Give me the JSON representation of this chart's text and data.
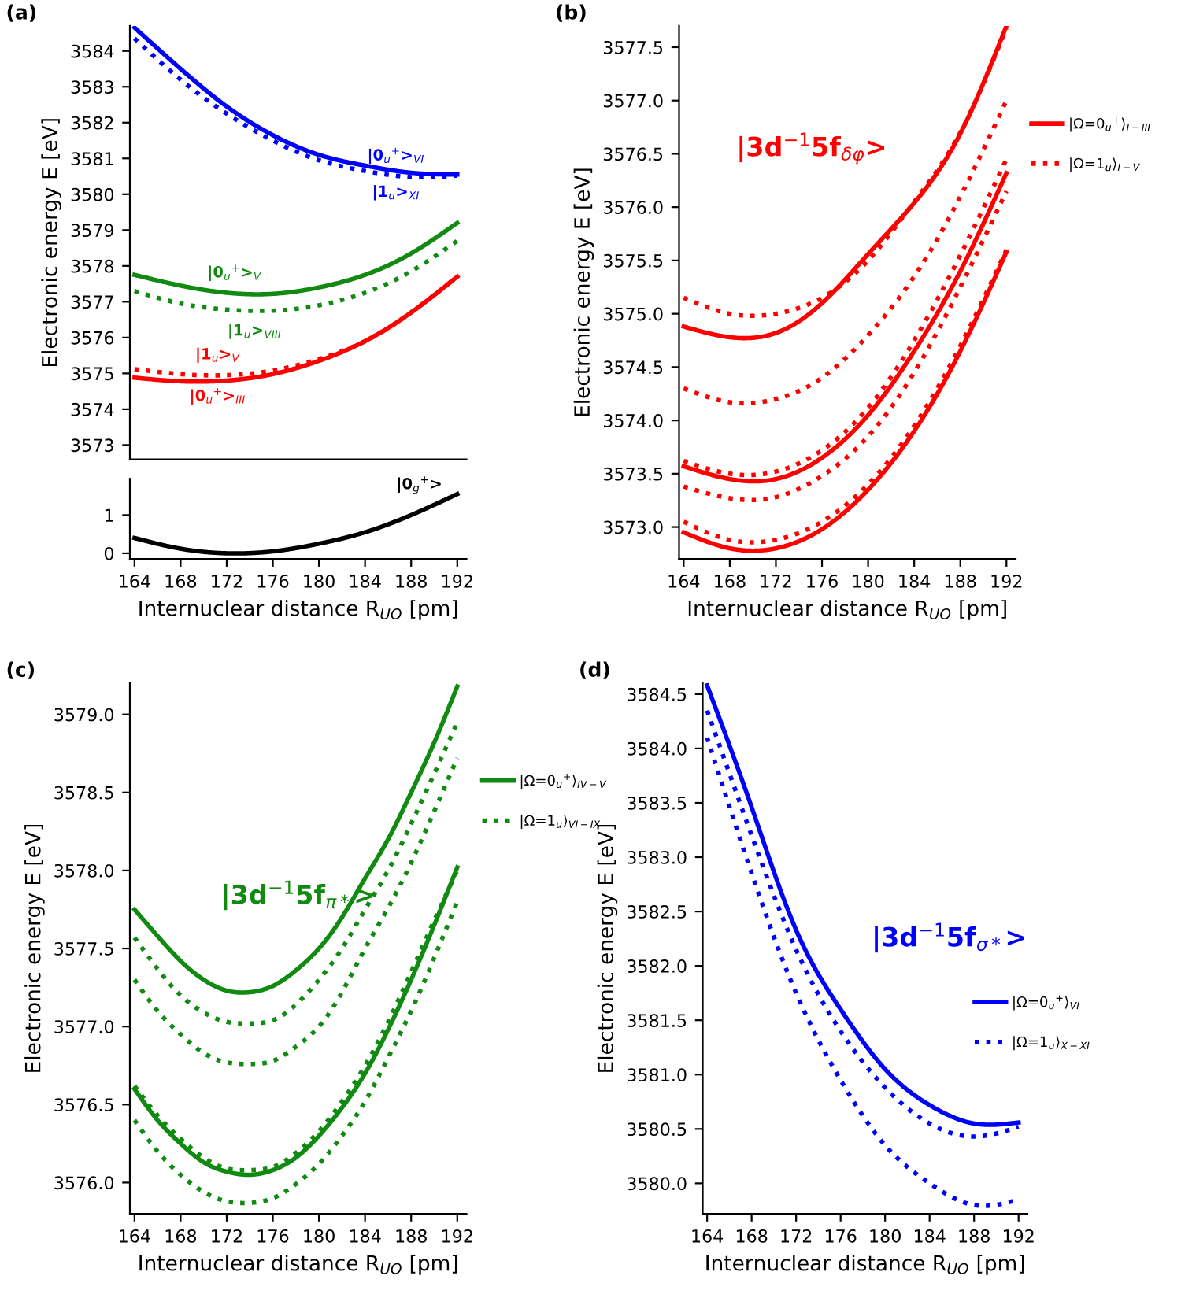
{
  "chart_data": [
    {
      "type": "line",
      "title": "(a)",
      "ylabel": "Electronic energy E [eV]",
      "x": [
        164,
        168,
        172,
        176,
        180,
        184,
        188,
        192
      ],
      "xlim": [
        163.6,
        192.8
      ],
      "xticks": [
        164,
        168,
        172,
        176,
        180,
        184,
        188,
        192
      ],
      "ylim": [
        3572.6,
        3584.7
      ],
      "yticks": [
        3573,
        3574,
        3575,
        3576,
        3577,
        3578,
        3579,
        3580,
        3581,
        3582,
        3583,
        3584
      ],
      "tick_labels": "y",
      "grid": false,
      "legend": false,
      "series": [
        {
          "color": "#0000ff",
          "line_style": "solid",
          "values": [
            3584.65,
            3583.5,
            3582.45,
            3581.65,
            3581.1,
            3580.8,
            3580.6,
            3580.55
          ]
        },
        {
          "color": "#0000ff",
          "line_style": "dotted",
          "values": [
            3584.35,
            3583.2,
            3582.25,
            3581.5,
            3580.95,
            3580.65,
            3580.48,
            3580.52
          ]
        },
        {
          "color": "#108a10",
          "line_style": "solid",
          "values": [
            3577.75,
            3577.45,
            3577.25,
            3577.22,
            3577.4,
            3577.75,
            3578.35,
            3579.2
          ]
        },
        {
          "color": "#108a10",
          "line_style": "dotted",
          "values": [
            3577.3,
            3576.95,
            3576.78,
            3576.75,
            3576.9,
            3577.25,
            3577.85,
            3578.7
          ]
        },
        {
          "color": "#ff0000",
          "line_style": "solid",
          "values": [
            3574.88,
            3574.78,
            3574.8,
            3574.98,
            3575.35,
            3575.9,
            3576.7,
            3577.7
          ]
        },
        {
          "color": "#ff0000",
          "line_style": "dotted",
          "values": [
            3575.12,
            3574.98,
            3574.95,
            3575.08,
            3575.4,
            3575.9,
            3576.7,
            3577.7
          ]
        }
      ],
      "annotations": [
        "|0$_{u}$$^{+}$>$_{VI}$",
        "|1$_{u}$>$_{XI}$",
        "|0$_{u}$$^{+}$>$_{V}$",
        "|1$_{u}$>$_{VIII}$",
        "|1$_{u}$>$_{V}$",
        "|0$_{u}$$^{+}$>$_{III}$"
      ]
    },
    {
      "type": "line",
      "xlabel": "Internuclear distance R$_{UO}$ [pm]",
      "x": [
        164,
        168,
        172,
        176,
        180,
        184,
        188,
        192
      ],
      "xlim": [
        163.6,
        192.8
      ],
      "xticks": [
        164,
        168,
        172,
        176,
        180,
        184,
        188,
        192
      ],
      "ylim": [
        -0.15,
        1.95
      ],
      "yticks": [
        0,
        1
      ],
      "grid": false,
      "legend": false,
      "series": [
        {
          "color": "#000000",
          "line_style": "solid",
          "values": [
            0.4,
            0.12,
            0.0,
            0.05,
            0.25,
            0.55,
            1.0,
            1.55
          ]
        }
      ],
      "annotations": [
        "|0$_{g}$$^{+}$>"
      ]
    },
    {
      "type": "line",
      "title": "(b)",
      "xlabel": "Internuclear distance R$_{UO}$ [pm]",
      "ylabel": "Electronic energy E [eV]",
      "x": [
        164,
        168,
        172,
        176,
        180,
        184,
        188,
        192
      ],
      "xlim": [
        163.6,
        192.8
      ],
      "xticks": [
        164,
        168,
        172,
        176,
        180,
        184,
        188,
        192
      ],
      "ylim": [
        3572.7,
        3577.7
      ],
      "yticks": [
        {
          "value": 3573,
          "label": "3573.0"
        },
        {
          "value": 3573.5,
          "label": "3573.5"
        },
        {
          "value": 3574,
          "label": "3574.0"
        },
        {
          "value": 3574.5,
          "label": "3574.5"
        },
        {
          "value": 3575,
          "label": "3575.0"
        },
        {
          "value": 3575.5,
          "label": "3575.5"
        },
        {
          "value": 3576,
          "label": "3576.0"
        },
        {
          "value": 3576.5,
          "label": "3576.5"
        },
        {
          "value": 3577,
          "label": "3577.0"
        },
        {
          "value": 3577.5,
          "label": "3577.5"
        }
      ],
      "grid": false,
      "legend": "right",
      "series": [
        {
          "name": "|Ω=0$_{u}$$^{+}$⟩$_{I−III}$",
          "color": "#ff0000",
          "line_style": "solid",
          "values": [
            3574.88,
            3574.78,
            3574.82,
            3575.1,
            3575.56,
            3576.04,
            3576.69,
            3577.7
          ]
        },
        {
          "color": "#ff0000",
          "line_style": "solid",
          "values": [
            3573.57,
            3573.45,
            3573.45,
            3573.65,
            3574.05,
            3574.65,
            3575.4,
            3576.32
          ]
        },
        {
          "color": "#ff0000",
          "line_style": "solid",
          "values": [
            3572.95,
            3572.8,
            3572.8,
            3572.98,
            3573.35,
            3573.9,
            3574.65,
            3575.58
          ]
        },
        {
          "name": "|Ω=1$_{u}$⟩$_{I−V}$",
          "color": "#ff0000",
          "line_style": "dotted",
          "values": [
            3575.15,
            3575.0,
            3575.0,
            3575.15,
            3575.5,
            3576.05,
            3576.7,
            3577.68
          ]
        },
        {
          "color": "#ff0000",
          "line_style": "dotted",
          "values": [
            3574.3,
            3574.17,
            3574.2,
            3574.4,
            3574.8,
            3575.35,
            3576.1,
            3577.0
          ]
        },
        {
          "color": "#ff0000",
          "line_style": "dotted",
          "values": [
            3573.62,
            3573.5,
            3573.52,
            3573.72,
            3574.12,
            3574.75,
            3575.55,
            3576.45
          ]
        },
        {
          "color": "#ff0000",
          "line_style": "dotted",
          "values": [
            3573.38,
            3573.27,
            3573.28,
            3573.48,
            3573.85,
            3574.45,
            3575.25,
            3576.15
          ]
        },
        {
          "color": "#ff0000",
          "line_style": "dotted",
          "values": [
            3573.05,
            3572.88,
            3572.88,
            3573.05,
            3573.4,
            3573.95,
            3574.7,
            3575.6
          ]
        }
      ],
      "annotations": [
        "|3d$^{−1}$5f$_{δφ}$>"
      ]
    },
    {
      "type": "line",
      "title": "(c)",
      "xlabel": "Internuclear distance R$_{UO}$ [pm]",
      "ylabel": "Electronic energy E [eV]",
      "x": [
        164,
        166,
        168,
        170,
        172,
        174,
        176,
        178,
        180,
        182,
        184,
        186,
        188,
        190,
        192
      ],
      "xlim": [
        163.6,
        192.8
      ],
      "xticks": [
        164,
        168,
        172,
        176,
        180,
        184,
        188,
        192
      ],
      "ylim": [
        3575.8,
        3579.2
      ],
      "yticks": [
        {
          "value": 3576,
          "label": "3576.0"
        },
        {
          "value": 3576.5,
          "label": "3576.5"
        },
        {
          "value": 3577,
          "label": "3577.0"
        },
        {
          "value": 3577.5,
          "label": "3577.5"
        },
        {
          "value": 3578,
          "label": "3578.0"
        },
        {
          "value": 3578.5,
          "label": "3578.5"
        },
        {
          "value": 3579,
          "label": "3579.0"
        }
      ],
      "grid": false,
      "legend": "right",
      "series": [
        {
          "name": "|Ω=0$_{u}$$^{+}$⟩$_{IV−V}$",
          "color": "#108a10",
          "line_style": "solid",
          "values": [
            3577.75,
            3577.58,
            3577.42,
            3577.3,
            3577.23,
            3577.22,
            3577.26,
            3577.36,
            3577.5,
            3577.7,
            3577.95,
            3578.2,
            3578.5,
            3578.82,
            3579.18
          ]
        },
        {
          "color": "#108a10",
          "line_style": "solid",
          "values": [
            3576.6,
            3576.4,
            3576.25,
            3576.13,
            3576.07,
            3576.05,
            3576.08,
            3576.16,
            3576.3,
            3576.48,
            3576.7,
            3576.98,
            3577.3,
            3577.65,
            3578.02
          ]
        },
        {
          "name": "|Ω=1$_{u}$⟩$_{VI−IX}$",
          "color": "#108a10",
          "line_style": "dotted",
          "values": [
            3577.57,
            3577.37,
            3577.2,
            3577.09,
            3577.03,
            3577.02,
            3577.04,
            3577.14,
            3577.3,
            3577.5,
            3577.75,
            3578.0,
            3578.3,
            3578.62,
            3578.95
          ]
        },
        {
          "color": "#108a10",
          "line_style": "dotted",
          "values": [
            3577.3,
            3577.1,
            3576.95,
            3576.83,
            3576.77,
            3576.76,
            3576.78,
            3576.87,
            3577.0,
            3577.22,
            3577.5,
            3577.76,
            3578.05,
            3578.38,
            3578.72
          ]
        },
        {
          "color": "#108a10",
          "line_style": "dotted",
          "values": [
            3576.62,
            3576.43,
            3576.28,
            3576.16,
            3576.09,
            3576.08,
            3576.1,
            3576.19,
            3576.33,
            3576.52,
            3576.75,
            3577.03,
            3577.35,
            3577.68,
            3578.0
          ]
        },
        {
          "color": "#108a10",
          "line_style": "dotted",
          "values": [
            3576.4,
            3576.2,
            3576.05,
            3575.94,
            3575.88,
            3575.87,
            3575.9,
            3575.99,
            3576.12,
            3576.3,
            3576.52,
            3576.8,
            3577.1,
            3577.44,
            3577.8
          ]
        }
      ],
      "annotations": [
        "|3d$^{−1}$5f$_{π*}$>"
      ]
    },
    {
      "type": "line",
      "title": "(d)",
      "xlabel": "Internuclear distance R$_{UO}$ [pm]",
      "ylabel": "Electronic energy E [eV]",
      "x": [
        164,
        168,
        172,
        176,
        180,
        184,
        188,
        192
      ],
      "xlim": [
        163.6,
        192.8
      ],
      "xticks": [
        164,
        168,
        172,
        176,
        180,
        184,
        188,
        192
      ],
      "ylim": [
        3579.72,
        3584.6
      ],
      "yticks": [
        {
          "value": 3580,
          "label": "3580.0"
        },
        {
          "value": 3580.5,
          "label": "3580.5"
        },
        {
          "value": 3581,
          "label": "3581.0"
        },
        {
          "value": 3581.5,
          "label": "3581.5"
        },
        {
          "value": 3582,
          "label": "3582.0"
        },
        {
          "value": 3582.5,
          "label": "3582.5"
        },
        {
          "value": 3583,
          "label": "3583.0"
        },
        {
          "value": 3583.5,
          "label": "3583.5"
        },
        {
          "value": 3584,
          "label": "3584.0"
        },
        {
          "value": 3584.5,
          "label": "3584.5"
        }
      ],
      "grid": false,
      "legend": "right",
      "series": [
        {
          "name": "|Ω=0$_{u}$$^{+}$⟩$_{VI}$",
          "color": "#0000ff",
          "line_style": "solid",
          "values": [
            3584.58,
            3583.46,
            3582.33,
            3581.6,
            3581.05,
            3580.72,
            3580.55,
            3580.56
          ]
        },
        {
          "name": "|Ω=1$_{u}$⟩$_{X−XI}$",
          "color": "#0000ff",
          "line_style": "dotted",
          "values": [
            3584.35,
            3583.2,
            3582.15,
            3581.4,
            3580.88,
            3580.55,
            3580.43,
            3580.52
          ]
        },
        {
          "color": "#0000ff",
          "line_style": "dotted",
          "values": [
            3584.1,
            3582.85,
            3581.75,
            3580.95,
            3580.35,
            3580.0,
            3579.8,
            3579.85
          ]
        }
      ],
      "annotations": [
        "|3d$^{−1}$5f$_{σ*}$>"
      ]
    }
  ]
}
